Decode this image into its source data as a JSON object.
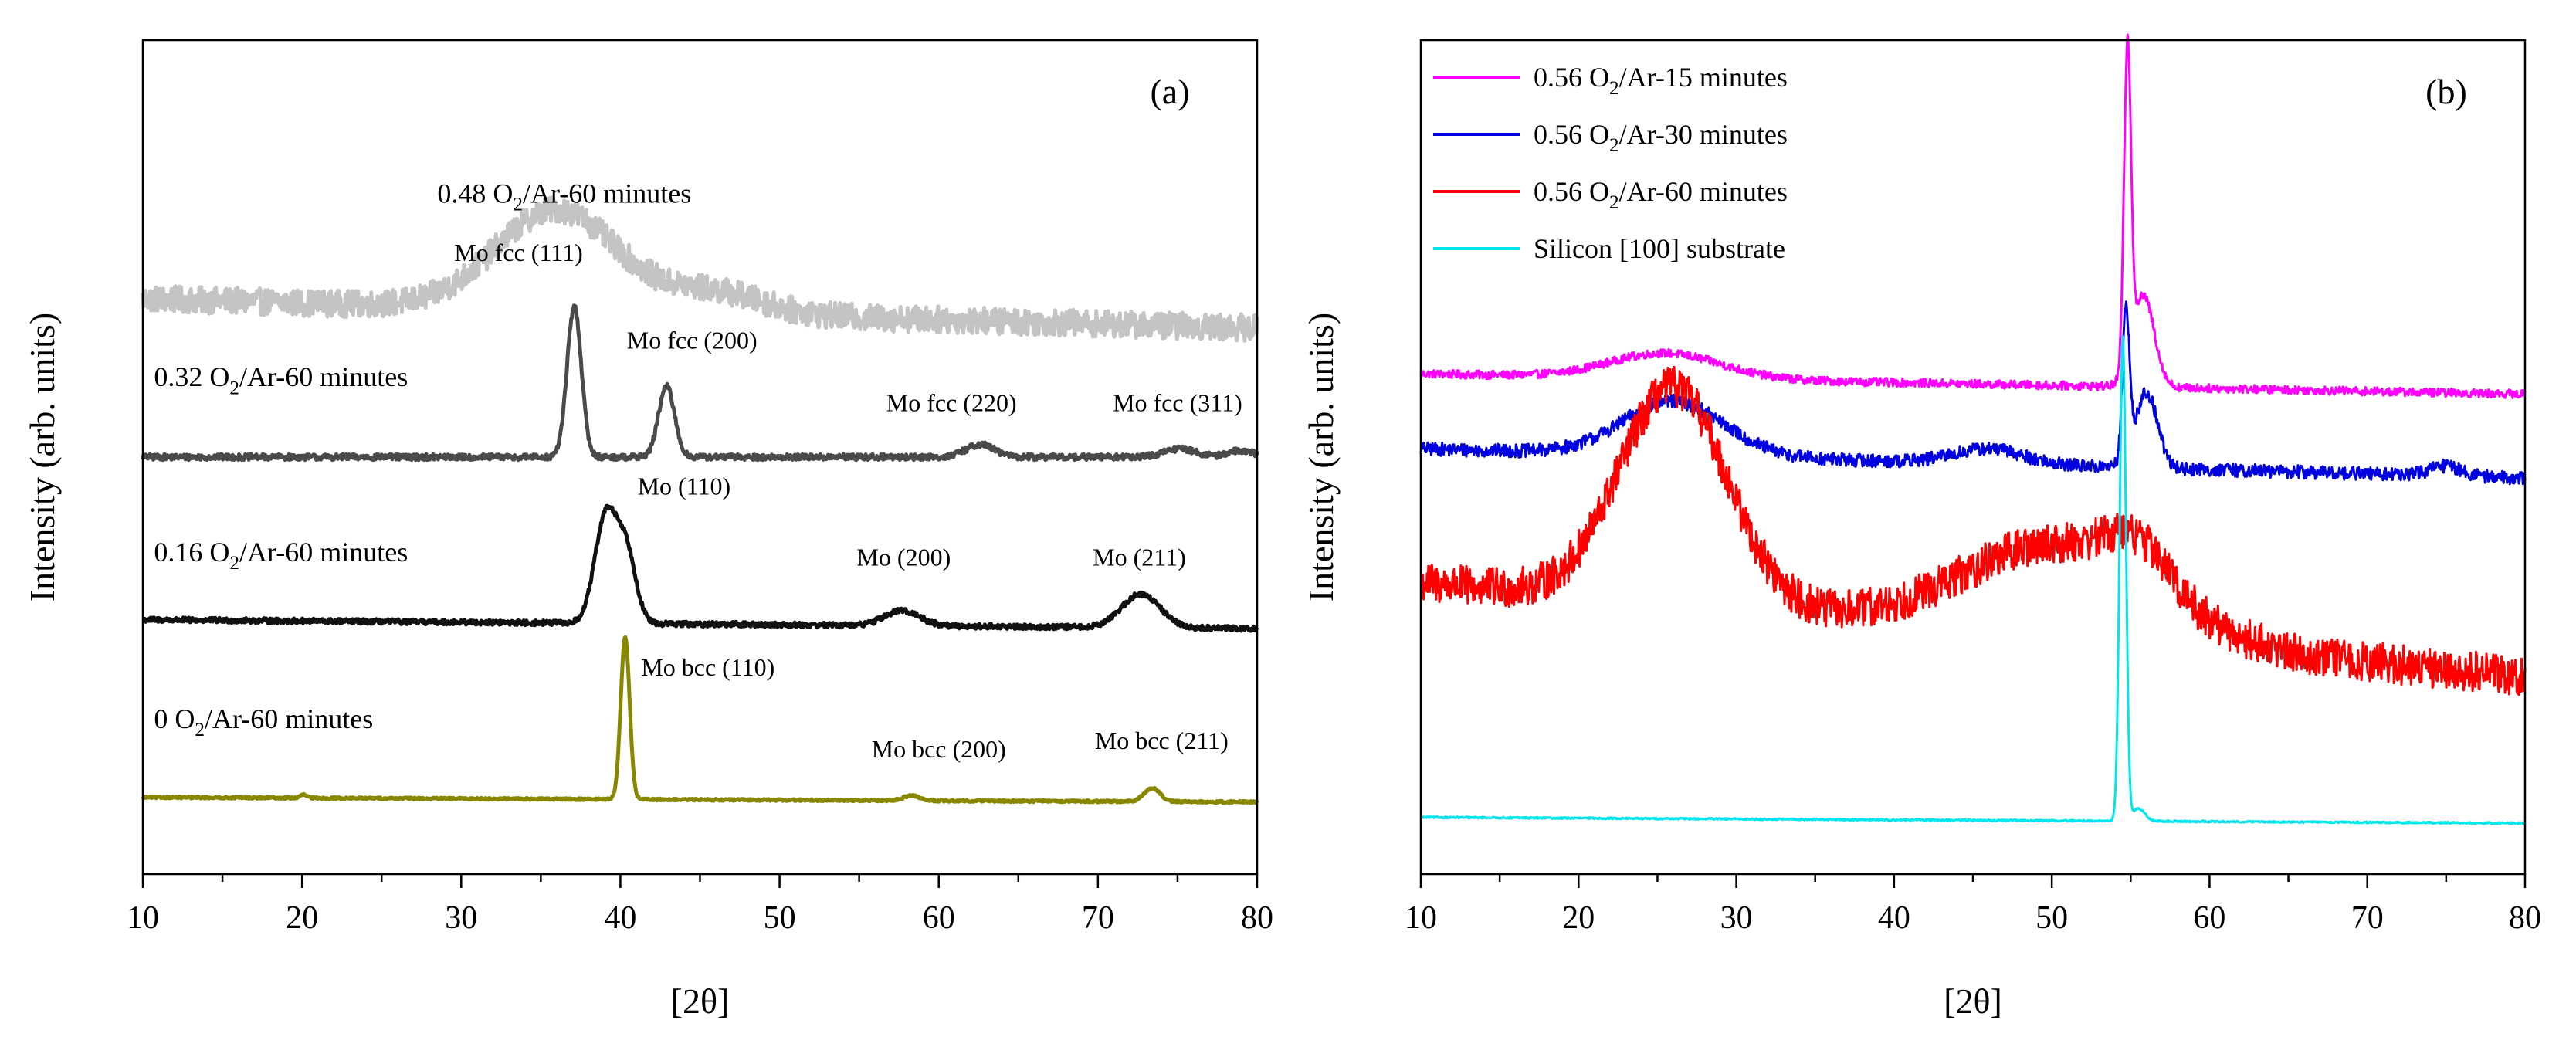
{
  "chart_data": [
    {
      "panel": "a",
      "type": "line",
      "tag": "(a)",
      "xlabel": "[2θ]",
      "ylabel": "Intensity (arb. units)",
      "xlim": [
        10,
        80
      ],
      "ylim": [
        0,
        100
      ],
      "xticks": [
        10,
        20,
        30,
        40,
        50,
        60,
        70,
        80
      ],
      "series": [
        {
          "name": "0.48 O2/Ar-60 minutes",
          "label_pre": "0.48 O",
          "label_sub": "2",
          "label_post": "/Ar-60 minutes",
          "color": "#c4c4c4",
          "width": 5,
          "base": 69,
          "noise": 1.6,
          "slope": -0.05,
          "peaks": [
            [
              36,
              12,
              3.8
            ],
            [
              46,
              2.5,
              3
            ]
          ]
        },
        {
          "name": "0.32 O2/Ar-60 minutes",
          "label_pre": "0.32 O",
          "label_sub": "2",
          "label_post": "/Ar-60 minutes",
          "color": "#4a4a4a",
          "width": 5,
          "base": 50,
          "noise": 0.35,
          "slope": 0,
          "peaks": [
            [
              37.1,
              18,
              0.45
            ],
            [
              42.9,
              8.5,
              0.5
            ],
            [
              62.6,
              1.5,
              0.9
            ],
            [
              75.2,
              1.0,
              1.0
            ],
            [
              79,
              0.8,
              0.8
            ]
          ]
        },
        {
          "name": "0.16 O2/Ar-60 minutes",
          "label_pre": "0.16 O",
          "label_sub": "2",
          "label_post": "/Ar-60 minutes",
          "color": "#111111",
          "width": 5,
          "base": 30.5,
          "noise": 0.3,
          "slope": -0.015,
          "peaks": [
            [
              39.1,
              13,
              0.7
            ],
            [
              40.4,
              8,
              0.6
            ],
            [
              57.7,
              1.8,
              1.1
            ],
            [
              72.7,
              4,
              1.2
            ]
          ]
        },
        {
          "name": "0 O2/Ar-60 minutes",
          "label_pre": "0 O",
          "label_sub": "2",
          "label_post": "/Ar-60 minutes",
          "color": "#888800",
          "width": 5,
          "base": 9.2,
          "noise": 0.12,
          "slope": -0.008,
          "peaks": [
            [
              40.3,
              19.5,
              0.28
            ],
            [
              58.3,
              0.6,
              0.5
            ],
            [
              73.4,
              1.6,
              0.5
            ],
            [
              20.1,
              0.4,
              0.2
            ]
          ]
        }
      ],
      "annotations": [
        {
          "text": "Mo fcc (111)",
          "x": 33.6,
          "y": 73.5
        },
        {
          "text": "Mo fcc (200)",
          "x": 44.5,
          "y": 63.0
        },
        {
          "text": "Mo fcc (220)",
          "x": 60.8,
          "y": 55.5
        },
        {
          "text": "Mo fcc (311)",
          "x": 75.0,
          "y": 55.5
        },
        {
          "text": "Mo (110)",
          "x": 44.0,
          "y": 45.5
        },
        {
          "text": "Mo (200)",
          "x": 57.8,
          "y": 37.0
        },
        {
          "text": "Mo (211)",
          "x": 72.6,
          "y": 37.0
        },
        {
          "text": "Mo bcc (110)",
          "x": 45.5,
          "y": 23.8
        },
        {
          "text": "Mo bcc (200)",
          "x": 60.0,
          "y": 14.0
        },
        {
          "text": "Mo bcc (211)",
          "x": 74.0,
          "y": 15.0
        }
      ]
    },
    {
      "panel": "b",
      "type": "line",
      "tag": "(b)",
      "xlabel": "[2θ]",
      "ylabel": "Intensity (arb. units)",
      "xlim": [
        10,
        80
      ],
      "ylim": [
        0,
        100
      ],
      "xticks": [
        10,
        20,
        30,
        40,
        50,
        60,
        70,
        80
      ],
      "legend_position": "top-left",
      "series": [
        {
          "name": "0.56 O2/Ar-15 minutes",
          "label_pre": "0.56 O",
          "label_sub": "2",
          "label_post": "/Ar-15 minutes",
          "color": "#ff00ff",
          "width": 3,
          "base": 60,
          "noise": 0.5,
          "slope": -0.035,
          "peaks": [
            [
              25.5,
              3,
              3.5
            ],
            [
              54.8,
              38,
              0.22
            ],
            [
              55.8,
              11,
              0.7
            ]
          ]
        },
        {
          "name": "0.56 O2/Ar-30 minutes",
          "label_pre": "0.56 O",
          "label_sub": "2",
          "label_post": "/Ar-30 minutes",
          "color": "#0000e0",
          "width": 3,
          "base": 51,
          "noise": 0.8,
          "slope": -0.05,
          "peaks": [
            [
              26,
              6.5,
              3.2
            ],
            [
              46,
              1.8,
              2.2
            ],
            [
              54.7,
              18,
              0.22
            ],
            [
              56,
              9,
              0.7
            ],
            [
              75,
              1.2,
              1.0
            ]
          ]
        },
        {
          "name": "0.56 O2/Ar-60 minutes",
          "label_pre": "0.56 O",
          "label_sub": "2",
          "label_post": "/Ar-60 minutes",
          "color": "#ff0000",
          "width": 3,
          "base": 35,
          "noise": 2.4,
          "slope": -0.16,
          "peaks": [
            [
              26,
              26,
              3.4
            ],
            [
              50.5,
              11,
              6
            ],
            [
              55.5,
              5,
              2
            ]
          ]
        },
        {
          "name": "Silicon [100] substrate",
          "label_pre": "Silicon [100] substrate",
          "label_sub": "",
          "label_post": "",
          "color": "#00e5ee",
          "width": 3,
          "base": 6.8,
          "noise": 0.1,
          "slope": -0.01,
          "peaks": [
            [
              54.5,
              58,
              0.2
            ],
            [
              55.5,
              1.5,
              0.4
            ]
          ]
        }
      ]
    }
  ]
}
